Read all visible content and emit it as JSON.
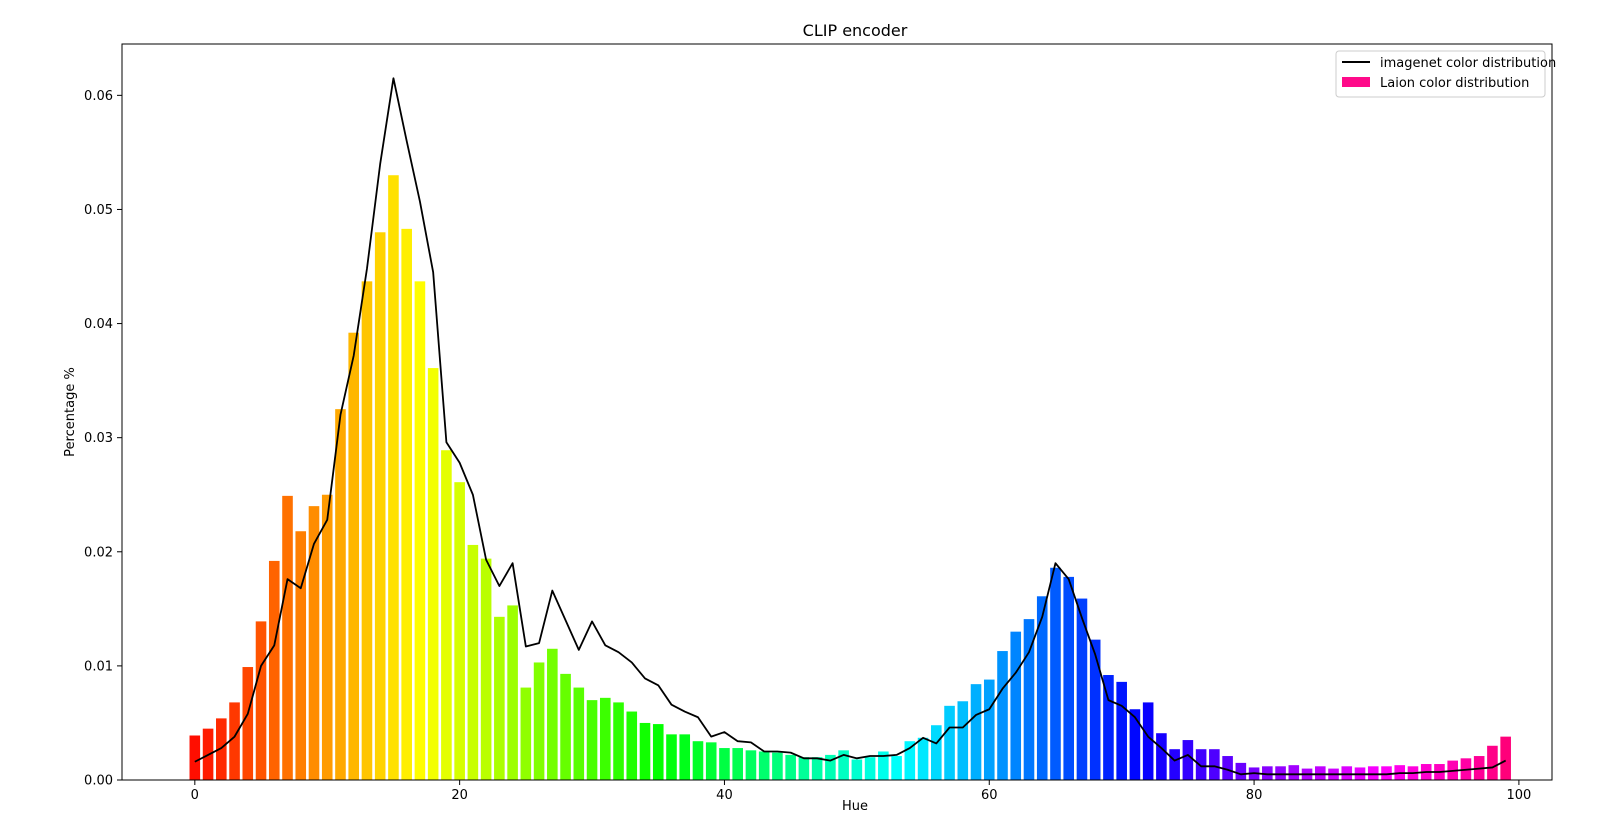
{
  "chart_data": {
    "type": "bar",
    "title": "CLIP encoder",
    "xlabel": "Hue",
    "ylabel": "Percentage %",
    "xlim": [
      -5.5,
      102.5
    ],
    "ylim": [
      0,
      0.0645
    ],
    "xticks": [
      0,
      20,
      40,
      60,
      80,
      100
    ],
    "yticks": [
      0.0,
      0.01,
      0.02,
      0.03,
      0.04,
      0.05,
      0.06
    ],
    "ytick_labels": [
      "0.00",
      "0.01",
      "0.02",
      "0.03",
      "0.04",
      "0.05",
      "0.06"
    ],
    "grid": false,
    "legend": {
      "placement": "top-right",
      "entries": [
        {
          "label": "imagenet color distribution",
          "kind": "line",
          "color": "#000000"
        },
        {
          "label": "Laion color distribution",
          "kind": "patch",
          "color": "#ff0a8a"
        }
      ]
    },
    "x": [
      0,
      1,
      2,
      3,
      4,
      5,
      6,
      7,
      8,
      9,
      10,
      11,
      12,
      13,
      14,
      15,
      16,
      17,
      18,
      19,
      20,
      21,
      22,
      23,
      24,
      25,
      26,
      27,
      28,
      29,
      30,
      31,
      32,
      33,
      34,
      35,
      36,
      37,
      38,
      39,
      40,
      41,
      42,
      43,
      44,
      45,
      46,
      47,
      48,
      49,
      50,
      51,
      52,
      53,
      54,
      55,
      56,
      57,
      58,
      59,
      60,
      61,
      62,
      63,
      64,
      65,
      66,
      67,
      68,
      69,
      70,
      71,
      72,
      73,
      74,
      75,
      76,
      77,
      78,
      79,
      80,
      81,
      82,
      83,
      84,
      85,
      86,
      87,
      88,
      89,
      90,
      91,
      92,
      93,
      94,
      95,
      96,
      97,
      98,
      99
    ],
    "series": [
      {
        "name": "Laion color distribution",
        "kind": "bar",
        "colormap": "hsv",
        "values": [
          0.0039,
          0.0045,
          0.0054,
          0.0068,
          0.0099,
          0.0139,
          0.0192,
          0.0249,
          0.0218,
          0.024,
          0.025,
          0.0325,
          0.0392,
          0.0437,
          0.048,
          0.053,
          0.0483,
          0.0437,
          0.0361,
          0.0289,
          0.0261,
          0.0206,
          0.0194,
          0.0143,
          0.0153,
          0.0081,
          0.0103,
          0.0115,
          0.0093,
          0.0081,
          0.007,
          0.0072,
          0.0068,
          0.006,
          0.005,
          0.0049,
          0.004,
          0.004,
          0.0034,
          0.0033,
          0.0028,
          0.0028,
          0.0026,
          0.0025,
          0.0024,
          0.0022,
          0.002,
          0.002,
          0.0022,
          0.0026,
          0.0018,
          0.002,
          0.0025,
          0.0021,
          0.0034,
          0.0037,
          0.0048,
          0.0065,
          0.0069,
          0.0084,
          0.0088,
          0.0113,
          0.013,
          0.0141,
          0.0161,
          0.0186,
          0.0178,
          0.0159,
          0.0123,
          0.0092,
          0.0086,
          0.0062,
          0.0068,
          0.0041,
          0.0027,
          0.0035,
          0.0027,
          0.0027,
          0.0021,
          0.0015,
          0.0011,
          0.0012,
          0.0012,
          0.0013,
          0.001,
          0.0012,
          0.001,
          0.0012,
          0.0011,
          0.0012,
          0.0012,
          0.0013,
          0.0012,
          0.0014,
          0.0014,
          0.0017,
          0.0019,
          0.0021,
          0.003,
          0.0038
        ]
      },
      {
        "name": "imagenet color distribution",
        "kind": "line",
        "color": "#000000",
        "values": [
          0.0016,
          0.0022,
          0.0028,
          0.0038,
          0.0058,
          0.01,
          0.0118,
          0.0176,
          0.0168,
          0.0207,
          0.0228,
          0.032,
          0.0372,
          0.0448,
          0.054,
          0.0615,
          0.056,
          0.0507,
          0.0445,
          0.0296,
          0.0278,
          0.025,
          0.0193,
          0.017,
          0.019,
          0.0117,
          0.012,
          0.0166,
          0.014,
          0.0114,
          0.0139,
          0.0118,
          0.0112,
          0.0103,
          0.0089,
          0.0083,
          0.0066,
          0.006,
          0.0055,
          0.0038,
          0.0042,
          0.0034,
          0.0033,
          0.0025,
          0.0025,
          0.0024,
          0.0019,
          0.0019,
          0.0017,
          0.0022,
          0.0019,
          0.0021,
          0.0021,
          0.0022,
          0.0028,
          0.0037,
          0.0032,
          0.0046,
          0.0046,
          0.0057,
          0.0062,
          0.008,
          0.0094,
          0.0112,
          0.0143,
          0.019,
          0.0176,
          0.0142,
          0.011,
          0.007,
          0.0065,
          0.0055,
          0.0038,
          0.0028,
          0.0017,
          0.0022,
          0.0012,
          0.0012,
          0.0009,
          0.0005,
          0.0006,
          0.0005,
          0.0005,
          0.0005,
          0.0005,
          0.0005,
          0.0005,
          0.0005,
          0.0005,
          0.0005,
          0.0005,
          0.0006,
          0.0006,
          0.0007,
          0.0007,
          0.0008,
          0.0009,
          0.001,
          0.0011,
          0.0017
        ]
      }
    ]
  }
}
